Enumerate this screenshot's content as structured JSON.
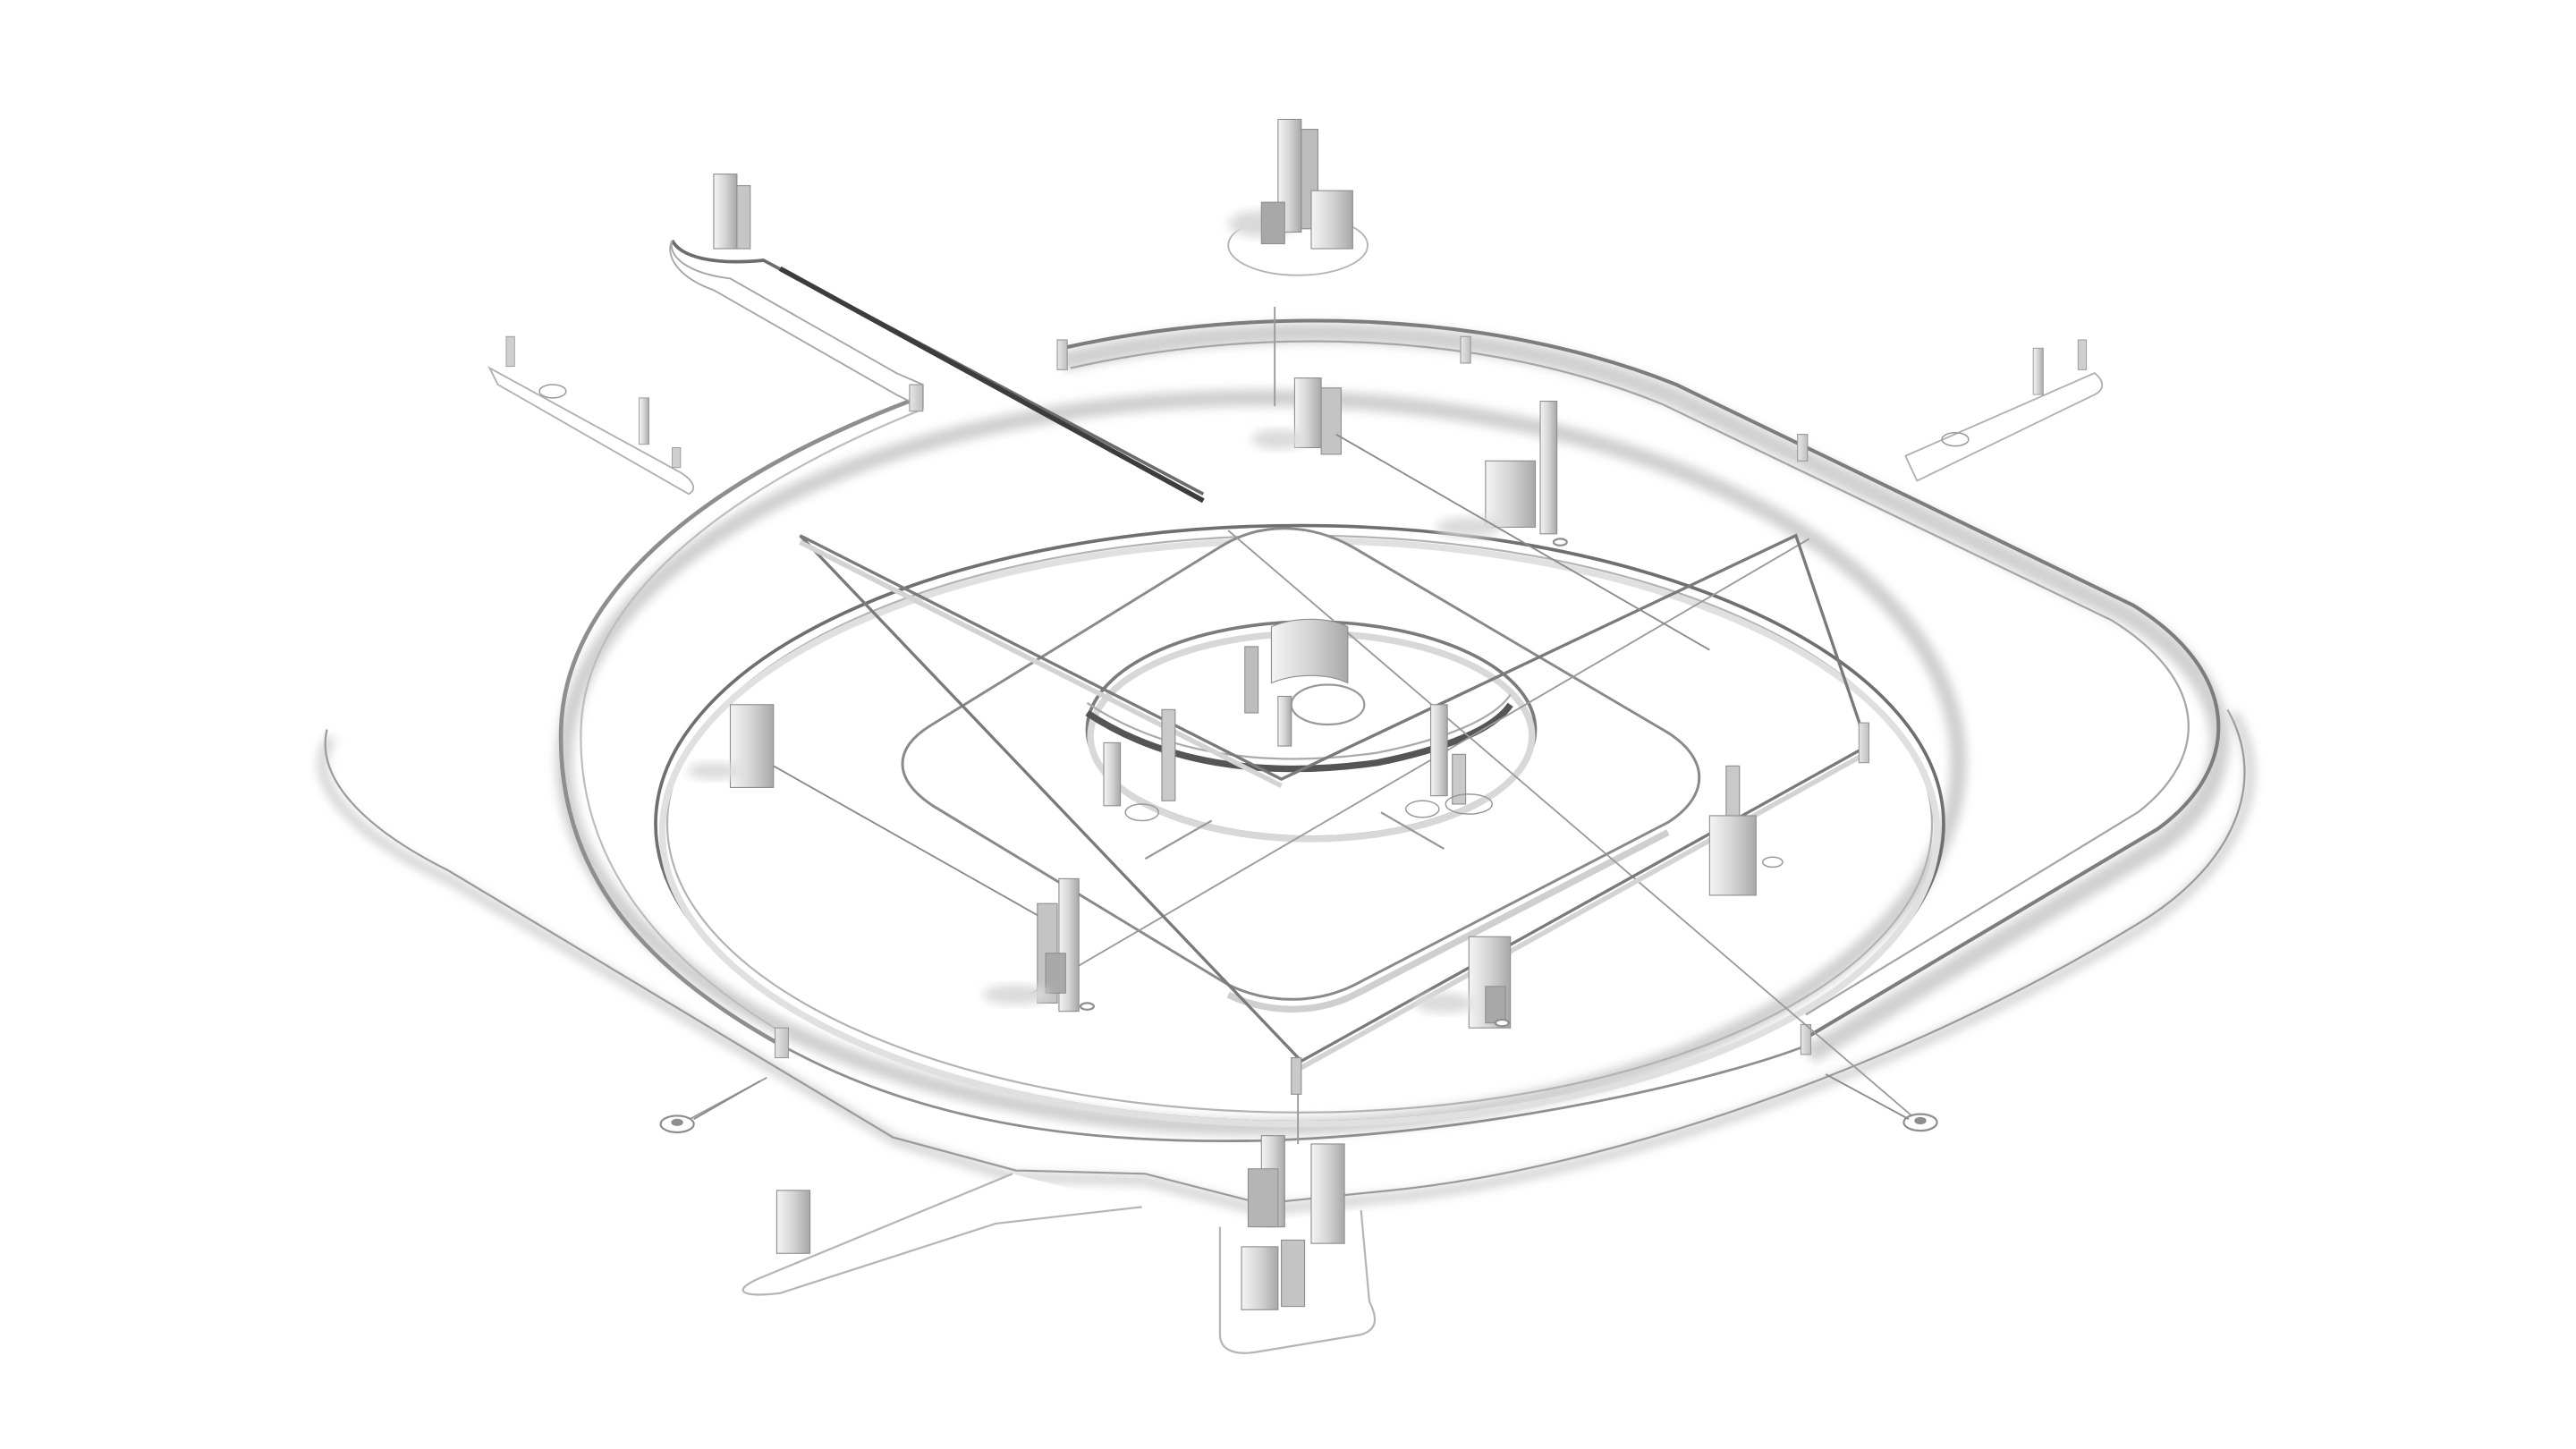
{
  "scene": {
    "type": "axonometric-white-model",
    "description_visible_text": "",
    "colors": {
      "background": "#ffffff",
      "top_face": "#ffffff",
      "edge": "#8a8a8a",
      "shadow": "#c9c9c9",
      "dark_shadow": "#9c9c9c",
      "side_face": "#dedede"
    }
  }
}
